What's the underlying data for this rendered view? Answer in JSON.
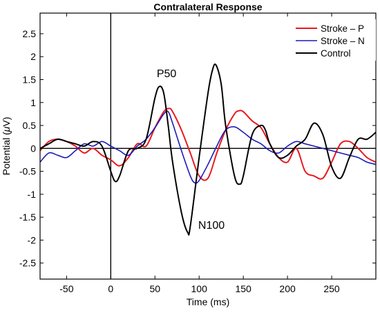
{
  "chart_data": {
    "type": "line",
    "title": "Contralateral Response",
    "xlabel": "Time (ms)",
    "ylabel_prefix": "Potential (",
    "ylabel_mu": "μ",
    "ylabel_suffix": "V)",
    "xlim": [
      -80,
      300
    ],
    "ylim": [
      -2.85,
      2.95
    ],
    "xticks": [
      -50,
      0,
      50,
      100,
      150,
      200,
      250
    ],
    "yticks": [
      -2.5,
      -2,
      -1.5,
      -1,
      -0.5,
      0,
      0.5,
      1,
      1.5,
      2,
      2.5
    ],
    "legend_position": "top-right",
    "series": [
      {
        "name": "Stroke – P",
        "color": "#e8191f",
        "x": [
          -80,
          -70,
          -60,
          -50,
          -40,
          -30,
          -20,
          -10,
          0,
          10,
          20,
          30,
          40,
          50,
          60,
          66,
          70,
          80,
          90,
          100,
          110,
          120,
          130,
          140,
          145,
          150,
          160,
          170,
          180,
          190,
          200,
          210,
          220,
          230,
          240,
          250,
          260,
          270,
          280,
          290,
          300
        ],
        "y": [
          -0.05,
          0.15,
          0.2,
          0.15,
          0.05,
          -0.1,
          0.0,
          -0.15,
          -0.25,
          -0.38,
          -0.2,
          0.1,
          0.05,
          0.45,
          0.8,
          0.87,
          0.8,
          0.4,
          -0.1,
          -0.6,
          -0.65,
          -0.1,
          0.4,
          0.75,
          0.82,
          0.8,
          0.6,
          0.45,
          0.1,
          -0.2,
          -0.3,
          0.0,
          -0.5,
          -0.6,
          -0.65,
          -0.3,
          0.1,
          0.15,
          0.0,
          -0.2,
          -0.3
        ]
      },
      {
        "name": "Stroke – N",
        "color": "#1a1ab8",
        "x": [
          -80,
          -70,
          -60,
          -50,
          -40,
          -30,
          -20,
          -10,
          0,
          10,
          20,
          30,
          40,
          50,
          60,
          65,
          70,
          80,
          90,
          95,
          100,
          110,
          120,
          130,
          140,
          150,
          160,
          170,
          180,
          190,
          200,
          210,
          220,
          230,
          240,
          250,
          260,
          270,
          280,
          290,
          300
        ],
        "y": [
          -0.3,
          -0.1,
          -0.15,
          -0.2,
          -0.05,
          0.1,
          0.05,
          0.15,
          0.05,
          -0.05,
          -0.15,
          0.05,
          0.2,
          0.45,
          0.75,
          0.8,
          0.55,
          -0.05,
          -0.6,
          -0.75,
          -0.7,
          -0.35,
          0.05,
          0.4,
          0.47,
          0.35,
          0.2,
          0.1,
          -0.05,
          -0.1,
          0.05,
          0.15,
          0.1,
          0.05,
          0.0,
          -0.05,
          -0.1,
          -0.15,
          -0.2,
          -0.3,
          -0.35
        ]
      },
      {
        "name": "Control",
        "color": "#000000",
        "x": [
          -80,
          -70,
          -60,
          -50,
          -40,
          -30,
          -20,
          -10,
          0,
          5,
          10,
          20,
          30,
          40,
          50,
          55,
          60,
          65,
          70,
          80,
          87,
          90,
          100,
          110,
          115,
          119,
          125,
          130,
          140,
          146,
          150,
          160,
          170,
          175,
          180,
          190,
          200,
          210,
          220,
          230,
          240,
          250,
          260,
          270,
          280,
          290,
          300
        ],
        "y": [
          0.0,
          0.1,
          0.2,
          0.15,
          0.1,
          0.05,
          0.15,
          0.05,
          -0.5,
          -0.72,
          -0.6,
          -0.05,
          0.0,
          0.2,
          1.1,
          1.35,
          1.2,
          0.5,
          -0.3,
          -1.4,
          -1.83,
          -1.7,
          -0.2,
          1.2,
          1.7,
          1.82,
          1.4,
          0.5,
          -0.6,
          -0.78,
          -0.6,
          0.3,
          0.5,
          0.4,
          0.1,
          -0.2,
          -0.15,
          0.05,
          0.2,
          0.55,
          0.3,
          -0.4,
          -0.65,
          -0.2,
          0.2,
          0.2,
          0.35
        ]
      }
    ],
    "annotations": [
      {
        "text": "P50",
        "x": 52,
        "y": 1.55
      },
      {
        "text": "N100",
        "x": 99,
        "y": -1.75
      }
    ]
  }
}
